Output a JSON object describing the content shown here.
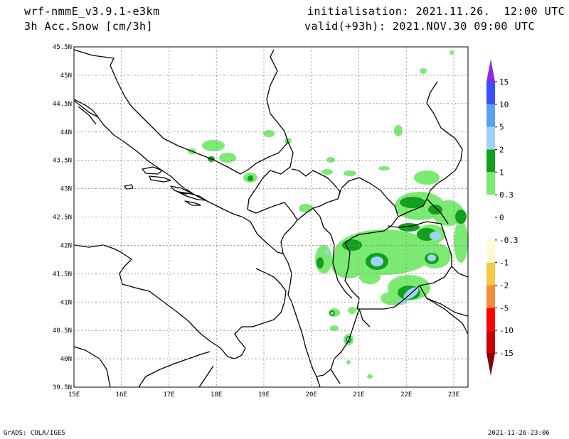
{
  "header": {
    "model": "wrf-nmmE_v3.9.1-e3km",
    "variable": "3h Acc.Snow [cm/3h]",
    "init": "initialisation: 2021.11.26.  12:00 UTC",
    "valid": "valid(+93h): 2021.NOV.30 09:00 UTC"
  },
  "footer": {
    "left": "GrADS: COLA/IGES",
    "right": "2021-11-26-23:06"
  },
  "map": {
    "lon_range": [
      15,
      23.3
    ],
    "lat_range": [
      39.5,
      45.5
    ],
    "x_ticks": [
      "15E",
      "16E",
      "17E",
      "18E",
      "19E",
      "20E",
      "21E",
      "22E",
      "23E"
    ],
    "y_ticks": [
      "39.5N",
      "40N",
      "40.5N",
      "41N",
      "41.5N",
      "42N",
      "42.5N",
      "43N",
      "43.5N",
      "44N",
      "44.5N",
      "45N",
      "45.5N"
    ]
  },
  "colorbar": {
    "labels": [
      "15",
      "10",
      "5",
      "2",
      "1",
      "0.3",
      "0",
      "-0.3",
      "-1",
      "-2",
      "-5",
      "-10",
      "-15"
    ],
    "colors": [
      "#8a2be2",
      "#3a4dff",
      "#5aa0f0",
      "#a0d2f8",
      "#11a01e",
      "#7cea72",
      "#ffffff",
      "#fffad2",
      "#f5c842",
      "#f08c3a",
      "#ff0000",
      "#c80000",
      "#8b0000"
    ]
  }
}
